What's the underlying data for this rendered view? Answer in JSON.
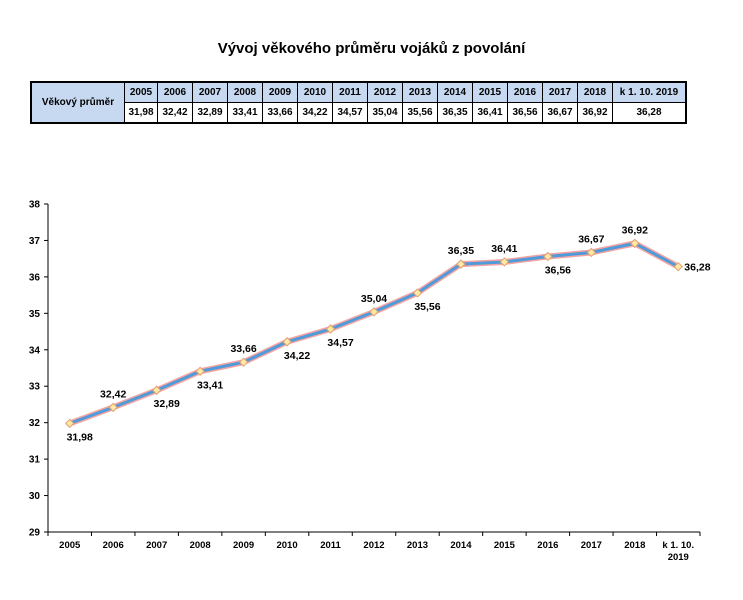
{
  "title": "Vývoj věkového průměru vojáků z povolání",
  "table": {
    "row_header": "Věkový průměr",
    "years": [
      "2005",
      "2006",
      "2007",
      "2008",
      "2009",
      "2010",
      "2011",
      "2012",
      "2013",
      "2014",
      "2015",
      "2016",
      "2017",
      "2018",
      "k 1. 10. 2019"
    ],
    "values": [
      "31,98",
      "32,42",
      "32,89",
      "33,41",
      "33,66",
      "34,22",
      "34,57",
      "35,04",
      "35,56",
      "36,35",
      "36,41",
      "36,56",
      "36,67",
      "36,92",
      "36,28"
    ]
  },
  "chart_data": {
    "type": "line",
    "title": "",
    "xlabel": "",
    "ylabel": "",
    "categories": [
      "2005",
      "2006",
      "2007",
      "2008",
      "2009",
      "2010",
      "2011",
      "2012",
      "2013",
      "2014",
      "2015",
      "2016",
      "2017",
      "2018",
      "k 1. 10. 2019"
    ],
    "category_labels": [
      [
        "2005"
      ],
      [
        "2006"
      ],
      [
        "2007"
      ],
      [
        "2008"
      ],
      [
        "2009"
      ],
      [
        "2010"
      ],
      [
        "2011"
      ],
      [
        "2012"
      ],
      [
        "2013"
      ],
      [
        "2014"
      ],
      [
        "2015"
      ],
      [
        "2016"
      ],
      [
        "2017"
      ],
      [
        "2018"
      ],
      [
        "k 1. 10.",
        "2019"
      ]
    ],
    "values": [
      31.98,
      32.42,
      32.89,
      33.41,
      33.66,
      34.22,
      34.57,
      35.04,
      35.56,
      36.35,
      36.41,
      36.56,
      36.67,
      36.92,
      36.28
    ],
    "value_labels": [
      "31,98",
      "32,42",
      "32,89",
      "33,41",
      "33,66",
      "34,22",
      "34,57",
      "35,04",
      "35,56",
      "36,35",
      "36,41",
      "36,56",
      "36,67",
      "36,92",
      "36,28"
    ],
    "label_positions": [
      "below",
      "above",
      "below",
      "below",
      "above",
      "below",
      "below",
      "above",
      "below",
      "above",
      "above",
      "below",
      "above",
      "above",
      "right"
    ],
    "ylim": [
      29,
      38
    ],
    "yticks": [
      29,
      30,
      31,
      32,
      33,
      34,
      35,
      36,
      37,
      38
    ],
    "grid": false,
    "legend": false,
    "colors": {
      "line": "#4f9bd9",
      "line_outline": "#f4a3a3",
      "marker_fill": "#ffe9a6",
      "marker_stroke": "#e0a070"
    }
  }
}
